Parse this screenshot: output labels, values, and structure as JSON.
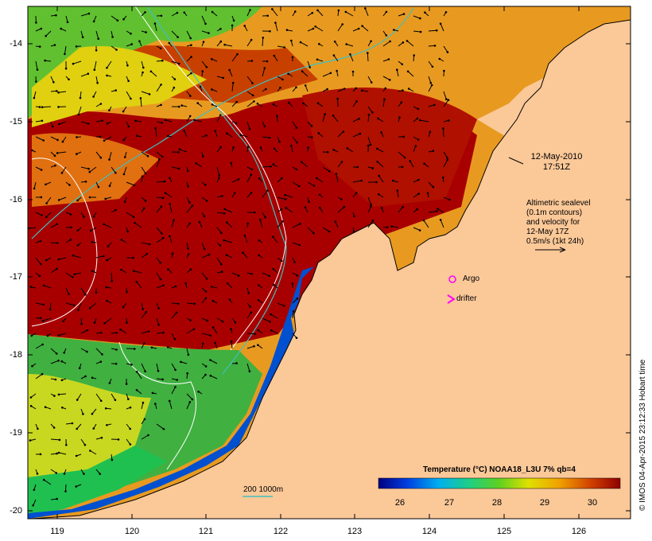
{
  "map": {
    "lon_ticks": [
      "119",
      "120",
      "121",
      "122",
      "123",
      "124",
      "125",
      "126"
    ],
    "lat_ticks": [
      "-14",
      "-15",
      "-16",
      "-17",
      "-18",
      "-19",
      "-20"
    ],
    "lon_range": [
      118.63,
      126.75
    ],
    "lat_range": [
      -20.1,
      -13.55
    ],
    "land_color": "#fbc898",
    "ocean_colors": {
      "deep_red": "#a00000",
      "orange": "#e88a10",
      "yellow": "#e8e010",
      "green": "#40c040",
      "cyan": "#00c8c8",
      "blue": "#0030c0"
    }
  },
  "date": {
    "line1": "12-May-2010",
    "line2": "17:51Z"
  },
  "altimetry_note": [
    "Altimetric sealevel",
    "(0.1m contours)",
    "and velocity for",
    "12-May 17Z",
    "0.5m/s (1kt 24h)"
  ],
  "legend": {
    "argo_label": "Argo",
    "drifter_label": "drifter",
    "argo_color": "#ff00ff",
    "drifter_color": "#ff00ff"
  },
  "isobath": {
    "label": "200  1000m",
    "color": "#40c0c0"
  },
  "colorbar": {
    "title": "Temperature (°C) NOAA18_L3U 7% qb=4",
    "ticks": [
      "26",
      "27",
      "28",
      "29",
      "30"
    ],
    "range": [
      25.5,
      30.6
    ]
  },
  "credit": "© IMOS 04-Apr-2015 23:12:33 Hobart time"
}
